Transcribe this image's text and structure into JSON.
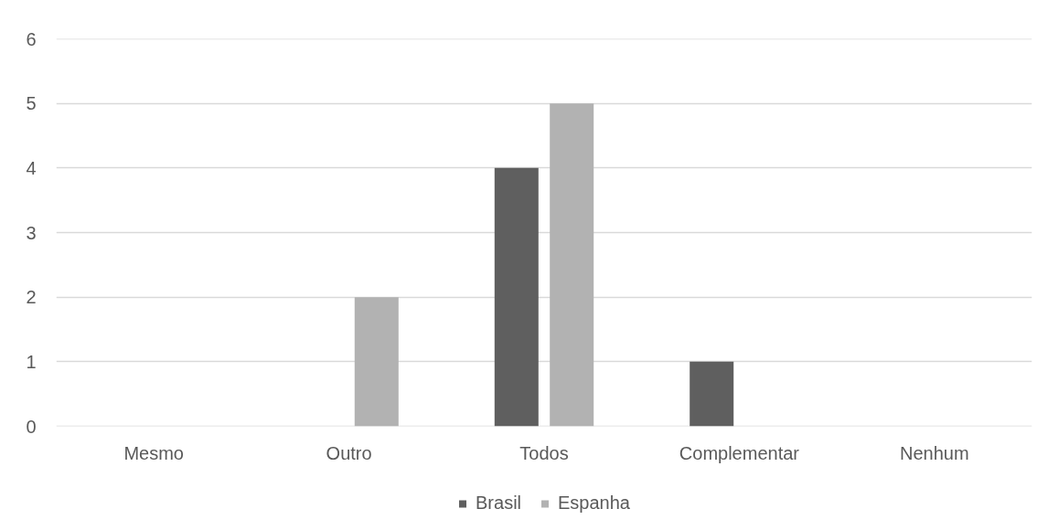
{
  "chart_data": {
    "type": "bar",
    "categories": [
      "Mesmo",
      "Outro",
      "Todos",
      "Complementar",
      "Nenhum"
    ],
    "series": [
      {
        "name": "Brasil",
        "color": "#5f5f5f",
        "values": [
          0,
          0,
          4,
          1,
          0
        ]
      },
      {
        "name": "Espanha",
        "color": "#b2b2b2",
        "values": [
          0,
          2,
          5,
          0,
          0
        ]
      }
    ],
    "ylim": [
      0,
      6
    ],
    "yticks": [
      0,
      1,
      2,
      3,
      4,
      5,
      6
    ],
    "grid": "y",
    "legend": "bottom"
  }
}
